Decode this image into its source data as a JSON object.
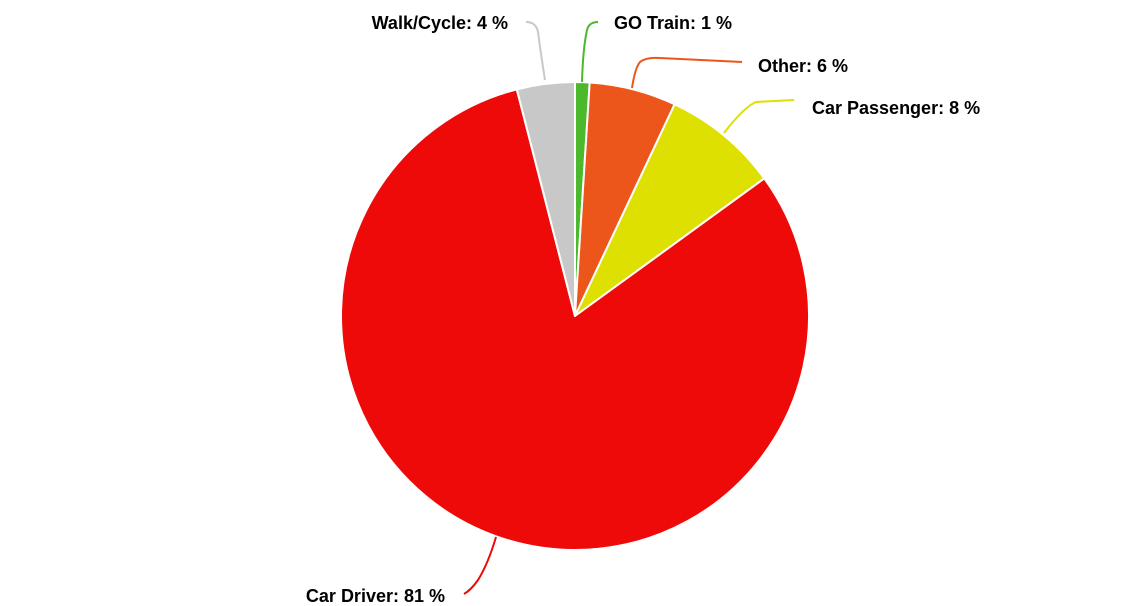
{
  "chart_data": {
    "type": "pie",
    "title": "",
    "start_angle_deg": 0,
    "slices": [
      {
        "label": "GO Train",
        "value": 1,
        "color": "#4cb82c",
        "label_text": "GO Train: 1 %"
      },
      {
        "label": "Other",
        "value": 6,
        "color": "#ec561b",
        "label_text": "Other: 6 %"
      },
      {
        "label": "Car Passenger",
        "value": 8,
        "color": "#dde000",
        "label_text": "Car Passenger: 8 %"
      },
      {
        "label": "Car Driver",
        "value": 81,
        "color": "#ef0a0a",
        "label_text": "Car Driver: 81 %"
      },
      {
        "label": "Walk/Cycle",
        "value": 4,
        "color": "#c8c8c8",
        "label_text": "Walk/Cycle: 4 %"
      }
    ]
  }
}
